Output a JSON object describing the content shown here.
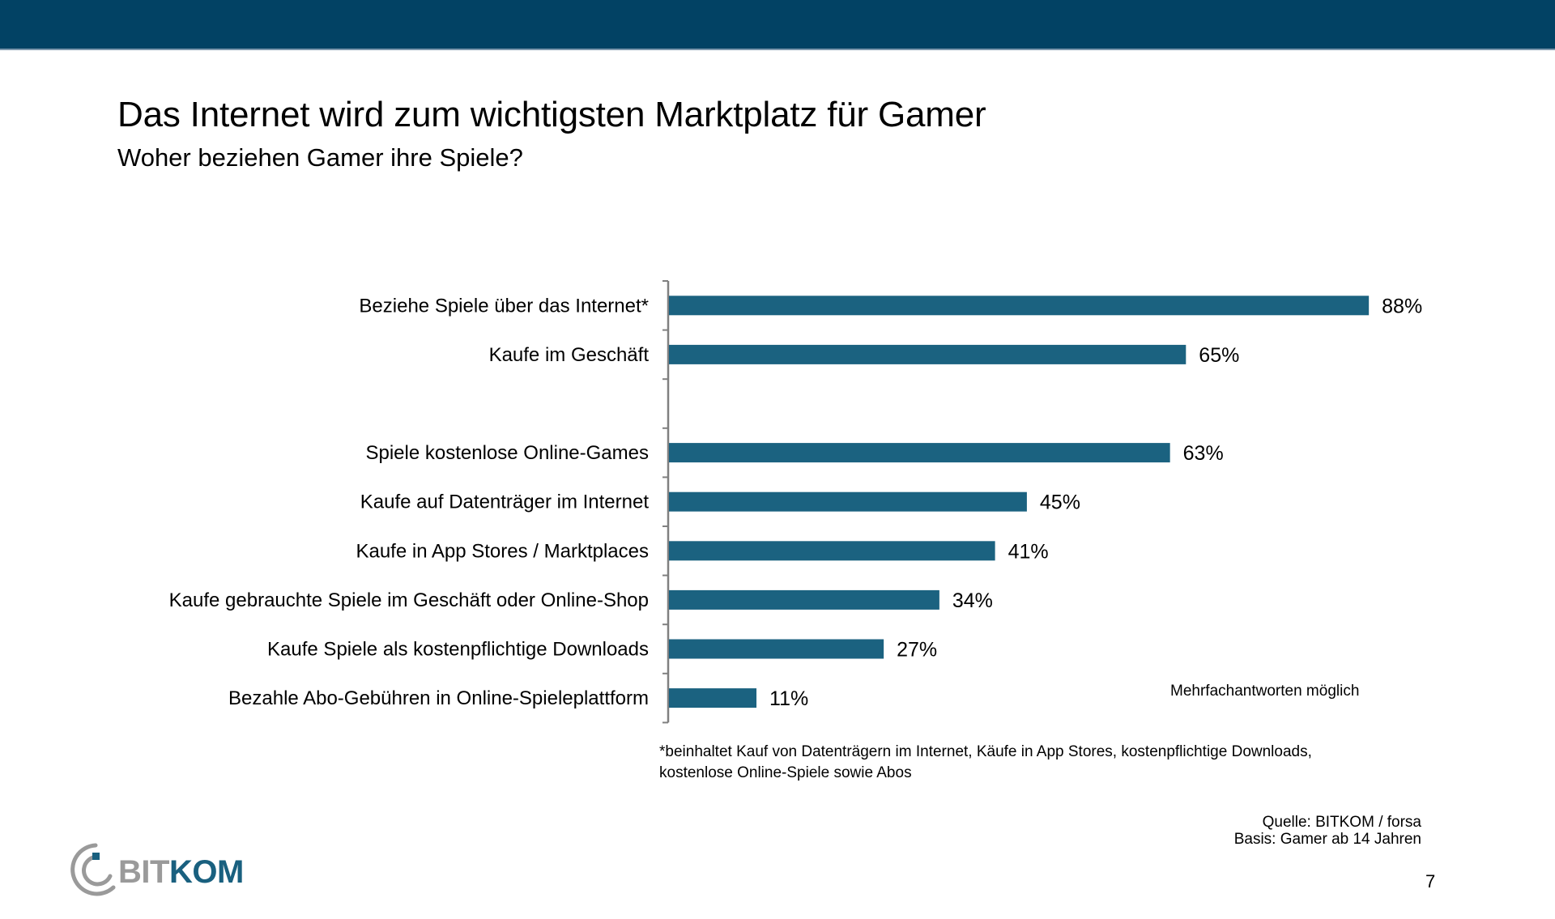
{
  "header": {
    "title": "Das Internet wird zum wichtigsten Marktplatz für Gamer",
    "subtitle": "Woher beziehen Gamer ihre Spiele?"
  },
  "colors": {
    "topbar": "#024264",
    "bar": "#1b6280",
    "axis": "#808080",
    "logo_gray": "#9a9a9a",
    "logo_blue": "#19607f"
  },
  "chart_data": {
    "type": "bar",
    "orientation": "horizontal",
    "title": "Woher beziehen Gamer ihre Spiele?",
    "xlabel": "",
    "ylabel": "",
    "xlim": [
      0,
      100
    ],
    "unit": "%",
    "grid": false,
    "legend": "none",
    "categories": [
      "Beziehe Spiele über das Internet*",
      "Kaufe im Geschäft",
      "",
      "Spiele kostenlose Online-Games",
      "Kaufe auf Datenträger im Internet",
      "Kaufe in App Stores / Marktplaces",
      "Kaufe gebrauchte Spiele im Geschäft oder Online-Shop",
      "Kaufe Spiele als kostenpflichtige Downloads",
      "Bezahle Abo-Gebühren in Online-Spieleplattform"
    ],
    "values": [
      88,
      65,
      null,
      63,
      45,
      41,
      34,
      27,
      11
    ],
    "value_labels": [
      "88%",
      "65%",
      "",
      "63%",
      "45%",
      "41%",
      "34%",
      "27%",
      "11%"
    ],
    "annotation": "Mehrfachantworten möglich"
  },
  "footnote": {
    "line1": "*beinhaltet Kauf von Datenträgern im Internet, Käufe in App Stores, kostenpflichtige Downloads,",
    "line2": "kostenlose Online-Spiele sowie Abos"
  },
  "source": {
    "line1": "Quelle: BITKOM / forsa",
    "line2": "Basis: Gamer ab 14 Jahren"
  },
  "page_number": "7",
  "logo": {
    "part1": "BIT",
    "part2": "KOM",
    "icon": "bitkom-arc-logo-icon"
  }
}
